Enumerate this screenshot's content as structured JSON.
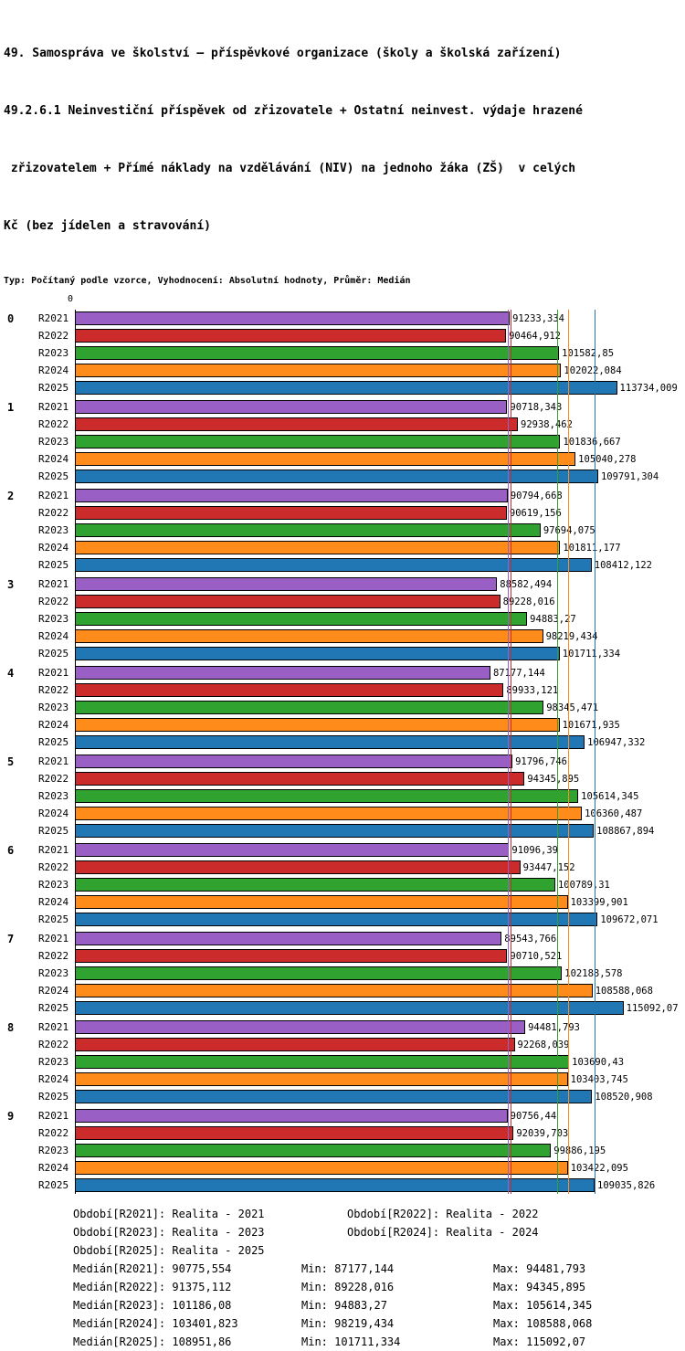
{
  "title": {
    "lines": [
      "49. Samospráva ve školství – příspěvkové organizace (školy a školská zařízení)",
      "49.2.6.1 Neinvestiční příspěvek od zřizovatele + Ostatní neinvest. výdaje hrazené",
      " zřizovatelem + Přímé náklady na vzdělávání (NIV) na jednoho žáka (ZŠ)  v celých",
      "Kč (bez jídelen a stravování)"
    ],
    "subtitle": "Typ: Počítaný podle vzorce, Vyhodnocení: Absolutní hodnoty, Průměr: Medián"
  },
  "chart_data": {
    "type": "bar",
    "orientation": "horizontal",
    "x_axis": {
      "origin_label": "0",
      "plot_max": 128000
    },
    "series_names": [
      "R2021",
      "R2022",
      "R2023",
      "R2024",
      "R2025"
    ],
    "series_colors": {
      "R2021": "#9A5FC4",
      "R2022": "#CC2B2B",
      "R2023": "#2FA22F",
      "R2024": "#FF8C1A",
      "R2025": "#2077B4"
    },
    "groups": [
      {
        "label": "0",
        "bars": [
          {
            "series": "R2021",
            "value": 91233.334,
            "label": "91233,334"
          },
          {
            "series": "R2022",
            "value": 90464.912,
            "label": "90464,912"
          },
          {
            "series": "R2023",
            "value": 101582.85,
            "label": "101582,85"
          },
          {
            "series": "R2024",
            "value": 102022.084,
            "label": "102022,084"
          },
          {
            "series": "R2025",
            "value": 113734.009,
            "label": "113734,009"
          }
        ]
      },
      {
        "label": "1",
        "bars": [
          {
            "series": "R2021",
            "value": 90718.343,
            "label": "90718,343"
          },
          {
            "series": "R2022",
            "value": 92938.462,
            "label": "92938,462"
          },
          {
            "series": "R2023",
            "value": 101836.667,
            "label": "101836,667"
          },
          {
            "series": "R2024",
            "value": 105040.278,
            "label": "105040,278"
          },
          {
            "series": "R2025",
            "value": 109791.304,
            "label": "109791,304"
          }
        ]
      },
      {
        "label": "2",
        "bars": [
          {
            "series": "R2021",
            "value": 90794.668,
            "label": "90794,668"
          },
          {
            "series": "R2022",
            "value": 90619.156,
            "label": "90619,156"
          },
          {
            "series": "R2023",
            "value": 97694.075,
            "label": "97694,075"
          },
          {
            "series": "R2024",
            "value": 101811.177,
            "label": "101811,177"
          },
          {
            "series": "R2025",
            "value": 108412.122,
            "label": "108412,122"
          }
        ]
      },
      {
        "label": "3",
        "bars": [
          {
            "series": "R2021",
            "value": 88582.494,
            "label": "88582,494"
          },
          {
            "series": "R2022",
            "value": 89228.016,
            "label": "89228,016"
          },
          {
            "series": "R2023",
            "value": 94883.27,
            "label": "94883,27"
          },
          {
            "series": "R2024",
            "value": 98219.434,
            "label": "98219,434"
          },
          {
            "series": "R2025",
            "value": 101711.334,
            "label": "101711,334"
          }
        ]
      },
      {
        "label": "4",
        "bars": [
          {
            "series": "R2021",
            "value": 87177.144,
            "label": "87177,144"
          },
          {
            "series": "R2022",
            "value": 89933.121,
            "label": "89933,121"
          },
          {
            "series": "R2023",
            "value": 98345.471,
            "label": "98345,471"
          },
          {
            "series": "R2024",
            "value": 101671.935,
            "label": "101671,935"
          },
          {
            "series": "R2025",
            "value": 106947.332,
            "label": "106947,332"
          }
        ]
      },
      {
        "label": "5",
        "bars": [
          {
            "series": "R2021",
            "value": 91796.746,
            "label": "91796,746"
          },
          {
            "series": "R2022",
            "value": 94345.895,
            "label": "94345,895"
          },
          {
            "series": "R2023",
            "value": 105614.345,
            "label": "105614,345"
          },
          {
            "series": "R2024",
            "value": 106360.487,
            "label": "106360,487"
          },
          {
            "series": "R2025",
            "value": 108867.894,
            "label": "108867,894"
          }
        ]
      },
      {
        "label": "6",
        "bars": [
          {
            "series": "R2021",
            "value": 91096.39,
            "label": "91096,39"
          },
          {
            "series": "R2022",
            "value": 93447.152,
            "label": "93447,152"
          },
          {
            "series": "R2023",
            "value": 100789.31,
            "label": "100789,31"
          },
          {
            "series": "R2024",
            "value": 103399.901,
            "label": "103399,901"
          },
          {
            "series": "R2025",
            "value": 109672.071,
            "label": "109672,071"
          }
        ]
      },
      {
        "label": "7",
        "bars": [
          {
            "series": "R2021",
            "value": 89543.766,
            "label": "89543,766"
          },
          {
            "series": "R2022",
            "value": 90710.521,
            "label": "90710,521"
          },
          {
            "series": "R2023",
            "value": 102188.578,
            "label": "102188,578"
          },
          {
            "series": "R2024",
            "value": 108588.068,
            "label": "108588,068"
          },
          {
            "series": "R2025",
            "value": 115092.07,
            "label": "115092,07"
          }
        ]
      },
      {
        "label": "8",
        "bars": [
          {
            "series": "R2021",
            "value": 94481.793,
            "label": "94481,793"
          },
          {
            "series": "R2022",
            "value": 92268.039,
            "label": "92268,039"
          },
          {
            "series": "R2023",
            "value": 103690.43,
            "label": "103690,43"
          },
          {
            "series": "R2024",
            "value": 103403.745,
            "label": "103403,745"
          },
          {
            "series": "R2025",
            "value": 108520.908,
            "label": "108520,908"
          }
        ]
      },
      {
        "label": "9",
        "bars": [
          {
            "series": "R2021",
            "value": 90756.44,
            "label": "90756,44"
          },
          {
            "series": "R2022",
            "value": 92039.703,
            "label": "92039,703"
          },
          {
            "series": "R2023",
            "value": 99886.195,
            "label": "99886,195"
          },
          {
            "series": "R2024",
            "value": 103422.095,
            "label": "103422,095"
          },
          {
            "series": "R2025",
            "value": 109035.826,
            "label": "109035,826"
          }
        ]
      }
    ],
    "median_lines": [
      {
        "series": "R2021",
        "value": 90775.554
      },
      {
        "series": "R2022",
        "value": 91375.112
      },
      {
        "series": "R2023",
        "value": 101186.08
      },
      {
        "series": "R2024",
        "value": 103401.823
      },
      {
        "series": "R2025",
        "value": 108951.86
      }
    ]
  },
  "legend": {
    "rows": [
      [
        "Období[R2021]: Realita - 2021",
        "Období[R2022]: Realita - 2022"
      ],
      [
        "Období[R2023]: Realita - 2023",
        "Období[R2024]: Realita - 2024"
      ],
      [
        "Období[R2025]: Realita - 2025"
      ]
    ]
  },
  "stats": {
    "rows": [
      [
        "Medián[R2021]: 90775,554",
        "Min: 87177,144",
        "Max: 94481,793"
      ],
      [
        "Medián[R2022]: 91375,112",
        "Min: 89228,016",
        "Max: 94345,895"
      ],
      [
        "Medián[R2023]: 101186,08",
        "Min: 94883,27",
        "Max: 105614,345"
      ],
      [
        "Medián[R2024]: 103401,823",
        "Min: 98219,434",
        "Max: 108588,068"
      ],
      [
        "Medián[R2025]: 108951,86",
        "Min: 101711,334",
        "Max: 115092,07"
      ]
    ]
  }
}
